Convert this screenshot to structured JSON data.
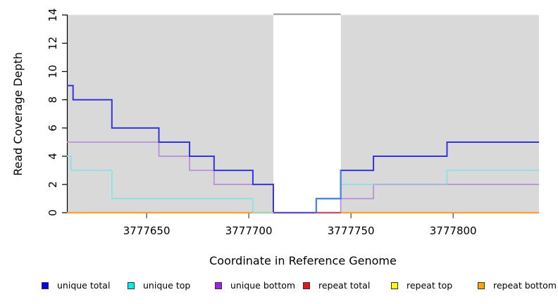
{
  "chart_data": {
    "type": "line",
    "step": true,
    "title": "",
    "xlabel": "Coordinate in Reference Genome",
    "ylabel": "Read Coverage Depth",
    "xlim": [
      3777611,
      3777842
    ],
    "ylim": [
      0,
      14
    ],
    "x_ticks": [
      3777650,
      3777700,
      3777750,
      3777800
    ],
    "y_ticks": [
      0,
      2,
      4,
      6,
      8,
      10,
      12,
      14
    ],
    "grid": false,
    "legend_position": "bottom",
    "plot_background": "#d9d9d9",
    "axis_color": "#000000",
    "series": [
      {
        "name": "unique total",
        "legend_color": "#0000ee",
        "line_color": "#3434dd",
        "line_width": 2,
        "points": [
          [
            3777611,
            9
          ],
          [
            3777614,
            8
          ],
          [
            3777633,
            6
          ],
          [
            3777656,
            5
          ],
          [
            3777671,
            4
          ],
          [
            3777683,
            3
          ],
          [
            3777702,
            2
          ],
          [
            3777712,
            0
          ],
          [
            3777733,
            1
          ],
          [
            3777745,
            3
          ],
          [
            3777761,
            4
          ],
          [
            3777797,
            5
          ]
        ]
      },
      {
        "name": "unique top",
        "legend_color": "#00eeee",
        "line_color": "#87e3e8",
        "line_width": 1.7,
        "points": [
          [
            3777611,
            4
          ],
          [
            3777613,
            3
          ],
          [
            3777633,
            1
          ],
          [
            3777702,
            0
          ],
          [
            3777733,
            1
          ],
          [
            3777745,
            2
          ],
          [
            3777797,
            3
          ]
        ]
      },
      {
        "name": "unique bottom",
        "legend_color": "#a020f0",
        "line_color": "#b88ddb",
        "line_width": 1.7,
        "points": [
          [
            3777611,
            5
          ],
          [
            3777656,
            4
          ],
          [
            3777671,
            3
          ],
          [
            3777683,
            2
          ],
          [
            3777712,
            0
          ],
          [
            3777745,
            1
          ],
          [
            3777761,
            2
          ]
        ]
      },
      {
        "name": "repeat total",
        "legend_color": "#ee1111",
        "line_color": "#dd2222",
        "line_width": 1.7,
        "points": [
          [
            3777611,
            0
          ]
        ]
      },
      {
        "name": "repeat top",
        "legend_color": "#ffff00",
        "line_color": "#eeee22",
        "line_width": 1.7,
        "points": [
          [
            3777611,
            0
          ]
        ]
      },
      {
        "name": "repeat bottom",
        "legend_color": "#ffa500",
        "line_color": "#ff9c1e",
        "line_width": 2,
        "points": [
          [
            3777611,
            0
          ]
        ]
      }
    ],
    "shaded_regions": [
      [
        3777611,
        3777712
      ],
      [
        3777745,
        3777842
      ]
    ],
    "gap_region": {
      "x1": 3777712,
      "x2": 3777745,
      "fill": "#ffffff",
      "top_border_color": "#999999"
    },
    "overlap_segments": [
      {
        "color": "#9fd8b0",
        "points": [
          [
            3777702,
            0
          ],
          [
            3777712,
            0
          ]
        ]
      },
      {
        "color": "#5b51db",
        "points": [
          [
            3777712,
            0
          ],
          [
            3777733,
            0
          ]
        ]
      },
      {
        "color": "#cf4466",
        "points": [
          [
            3777733,
            0
          ],
          [
            3777745,
            0
          ]
        ]
      },
      {
        "color": "#4286f0",
        "points": [
          [
            3777733,
            0
          ],
          [
            3777733,
            1
          ],
          [
            3777745,
            1
          ],
          [
            3777745,
            3
          ]
        ]
      },
      {
        "color": "#a8b2e6",
        "points": [
          [
            3777761,
            2
          ],
          [
            3777797,
            2
          ]
        ]
      }
    ]
  },
  "legend": {
    "items": [
      {
        "label": "unique total",
        "color": "#0000ee"
      },
      {
        "label": "unique top",
        "color": "#00eeee"
      },
      {
        "label": "unique bottom",
        "color": "#a020f0"
      },
      {
        "label": "repeat total",
        "color": "#ee1111"
      },
      {
        "label": "repeat top",
        "color": "#ffff00"
      },
      {
        "label": "repeat bottom",
        "color": "#ffa500"
      }
    ]
  }
}
